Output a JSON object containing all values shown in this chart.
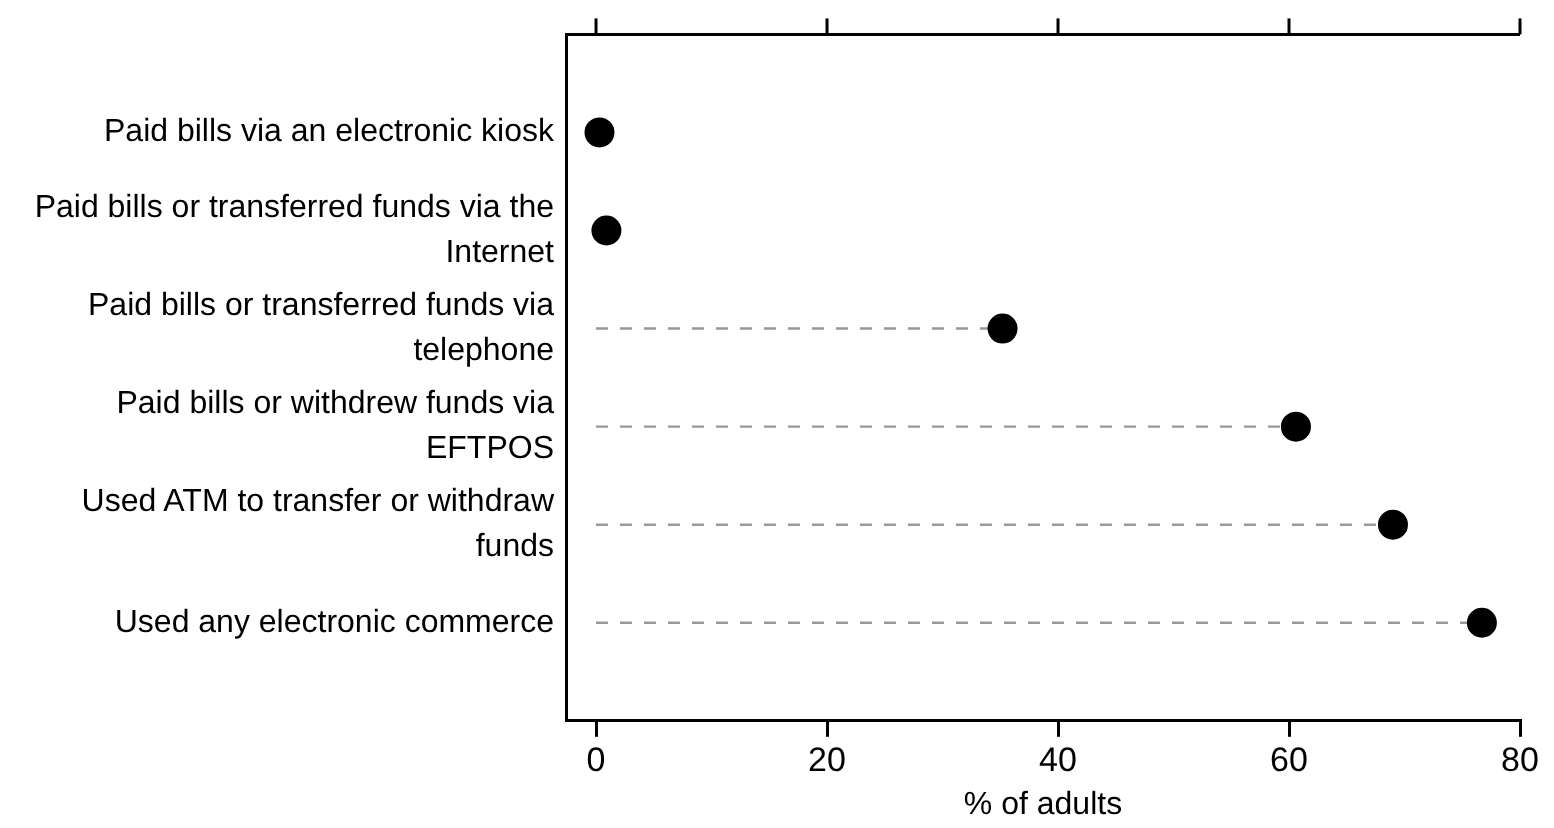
{
  "chart_data": {
    "type": "lollipop",
    "orientation": "horizontal",
    "xlabel": "% of adults",
    "categories": [
      "Paid bills via an electronic kiosk",
      "Paid bills or transferred funds via the Internet",
      "Paid bills or transferred funds via telephone",
      "Paid bills or withdrew funds via EFTPOS",
      "Used ATM to transfer or withdraw funds",
      "Used any electronic commerce"
    ],
    "values": [
      0.3,
      0.9,
      35.2,
      60.6,
      69,
      76.7
    ],
    "color": "#000000",
    "xlim": [
      -2.6,
      80
    ],
    "xticks": [
      0,
      20,
      40,
      60,
      80
    ],
    "marker": "circle",
    "line_style": "dashed"
  }
}
